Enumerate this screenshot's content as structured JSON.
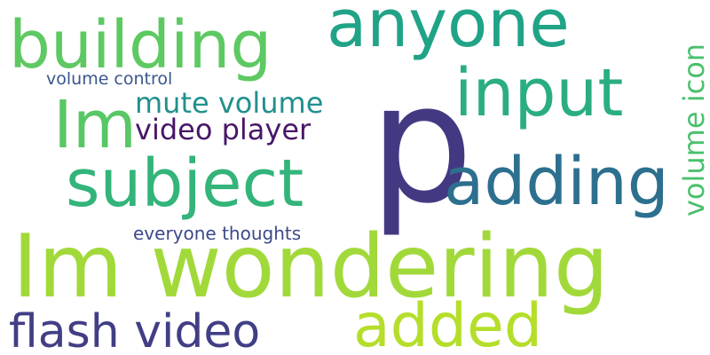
{
  "words": {
    "im_wondering": {
      "text": "Im wondering",
      "color": "#a2d93a"
    },
    "p": {
      "text": "p",
      "color": "#433983"
    },
    "anyone": {
      "text": "anyone",
      "color": "#20a386"
    },
    "building": {
      "text": "building",
      "color": "#5ec962"
    },
    "subject": {
      "text": "subject",
      "color": "#33b47a"
    },
    "input": {
      "text": "input",
      "color": "#2aae80"
    },
    "adding": {
      "text": "adding",
      "color": "#2d6f8e"
    },
    "im": {
      "text": "Im",
      "color": "#58c765"
    },
    "added": {
      "text": "added",
      "color": "#b5de2b"
    },
    "flash_video": {
      "text": "flash video",
      "color": "#413e85"
    },
    "video_player": {
      "text": "video player",
      "color": "#481668"
    },
    "mute_volume": {
      "text": "mute volume",
      "color": "#21908d"
    },
    "volume_icon": {
      "text": "volume icon",
      "color": "#4ac16d"
    },
    "volume_control": {
      "text": "volume control",
      "color": "#39568c"
    },
    "everyone_thoughts": {
      "text": "everyone thoughts",
      "color": "#3e4989"
    }
  }
}
